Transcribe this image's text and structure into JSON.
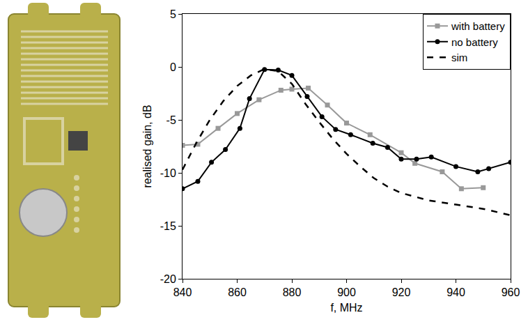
{
  "chart_data": {
    "type": "line",
    "x_label": "f, MHz",
    "y_label": "realised gain, dB",
    "xlim": [
      840,
      960
    ],
    "xticks": [
      840,
      860,
      880,
      900,
      920,
      940,
      960
    ],
    "ylim": [
      -20,
      5
    ],
    "yticks": [
      -20,
      -15,
      -10,
      -5,
      0,
      5
    ],
    "grid": false,
    "legend": "upper right",
    "series": [
      {
        "name": "with battery",
        "color": "#999999",
        "marker": "square",
        "line_style": "solid",
        "x": [
          840,
          845.6,
          853,
          860,
          868,
          876,
          880,
          886,
          893,
          900,
          908.6,
          920,
          925,
          935,
          942,
          950
        ],
        "values": [
          -7.4,
          -7.3,
          -5.8,
          -4.4,
          -3.1,
          -2.2,
          -2.1,
          -2.0,
          -3.6,
          -5.3,
          -6.4,
          -8.1,
          -9.1,
          -9.9,
          -11.5,
          -11.4
        ]
      },
      {
        "name": "no battery",
        "color": "#000000",
        "marker": "circle",
        "line_style": "solid",
        "x": [
          840,
          845.6,
          850.6,
          855.7,
          861,
          864.5,
          870,
          875,
          880,
          885.6,
          891,
          896,
          901.5,
          909.6,
          915,
          920,
          925.6,
          931,
          940,
          948,
          952,
          960
        ],
        "values": [
          -11.5,
          -10.8,
          -9.0,
          -7.8,
          -5.8,
          -3.0,
          -0.25,
          -0.3,
          -0.8,
          -2.8,
          -4.7,
          -5.9,
          -6.4,
          -7.2,
          -7.6,
          -8.7,
          -8.7,
          -8.5,
          -9.4,
          -9.9,
          -9.6,
          -9.0
        ]
      },
      {
        "name": "sim",
        "color": "#000000",
        "marker": "none",
        "line_style": "dashed",
        "x": [
          840,
          845,
          850,
          855,
          860,
          865,
          870,
          875,
          880,
          885,
          890,
          895,
          900,
          905,
          910,
          915,
          920,
          930,
          940,
          950,
          960
        ],
        "values": [
          -9.7,
          -7.2,
          -5.0,
          -3.2,
          -1.8,
          -0.8,
          -0.2,
          -0.4,
          -1.6,
          -3.5,
          -5.2,
          -6.8,
          -8.2,
          -9.4,
          -10.5,
          -11.3,
          -11.9,
          -12.6,
          -13.0,
          -13.4,
          -14.0
        ]
      }
    ]
  }
}
